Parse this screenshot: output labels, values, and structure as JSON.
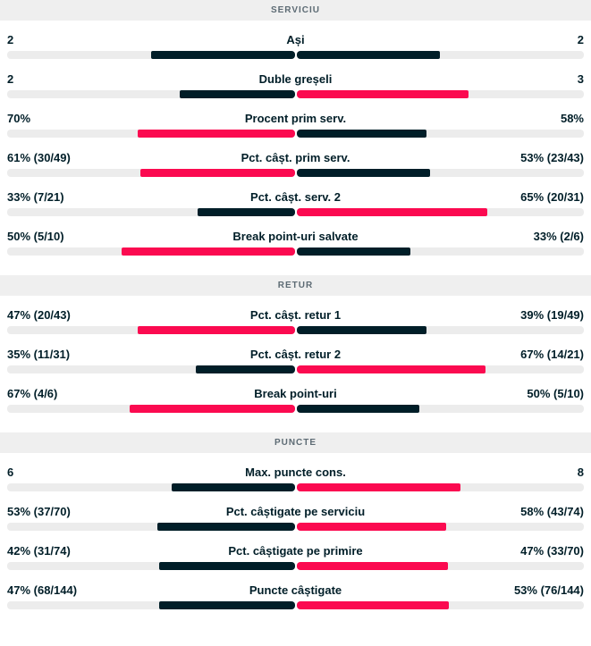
{
  "theme": {
    "accent_red": "#fb0a50",
    "dark": "#001e28",
    "track": "#ececec",
    "band_bg": "#efefef",
    "band_text": "#5d6b74"
  },
  "sections": [
    {
      "title": "SERVICIU",
      "rows": [
        {
          "label": "Ași",
          "left": "2",
          "right": "2",
          "left_value": 2,
          "right_value": 2
        },
        {
          "label": "Duble greșeli",
          "left": "2",
          "right": "3",
          "left_value": 2,
          "right_value": 3
        },
        {
          "label": "Procent prim serv.",
          "left": "70%",
          "right": "58%",
          "left_value": 70,
          "right_value": 58
        },
        {
          "label": "Pct. câșt. prim serv.",
          "left": "61% (30/49)",
          "right": "53% (23/43)",
          "left_value": 61,
          "right_value": 53
        },
        {
          "label": "Pct. câșt. serv. 2",
          "left": "33% (7/21)",
          "right": "65% (20/31)",
          "left_value": 33,
          "right_value": 65
        },
        {
          "label": "Break point-uri salvate",
          "left": "50% (5/10)",
          "right": "33% (2/6)",
          "left_value": 50,
          "right_value": 33
        }
      ]
    },
    {
      "title": "RETUR",
      "rows": [
        {
          "label": "Pct. câșt. retur 1",
          "left": "47% (20/43)",
          "right": "39% (19/49)",
          "left_value": 47,
          "right_value": 39
        },
        {
          "label": "Pct. câșt. retur 2",
          "left": "35% (11/31)",
          "right": "67% (14/21)",
          "left_value": 35,
          "right_value": 67
        },
        {
          "label": "Break point-uri",
          "left": "67% (4/6)",
          "right": "50% (5/10)",
          "left_value": 67,
          "right_value": 50
        }
      ]
    },
    {
      "title": "PUNCTE",
      "rows": [
        {
          "label": "Max. puncte cons.",
          "left": "6",
          "right": "8",
          "left_value": 6,
          "right_value": 8
        },
        {
          "label": "Pct. câștigate pe serviciu",
          "left": "53% (37/70)",
          "right": "58% (43/74)",
          "left_value": 53,
          "right_value": 58
        },
        {
          "label": "Pct. câștigate pe primire",
          "left": "42% (31/74)",
          "right": "47% (33/70)",
          "left_value": 42,
          "right_value": 47
        },
        {
          "label": "Puncte câștigate",
          "left": "47% (68/144)",
          "right": "53% (76/144)",
          "left_value": 47,
          "right_value": 53
        }
      ]
    }
  ]
}
